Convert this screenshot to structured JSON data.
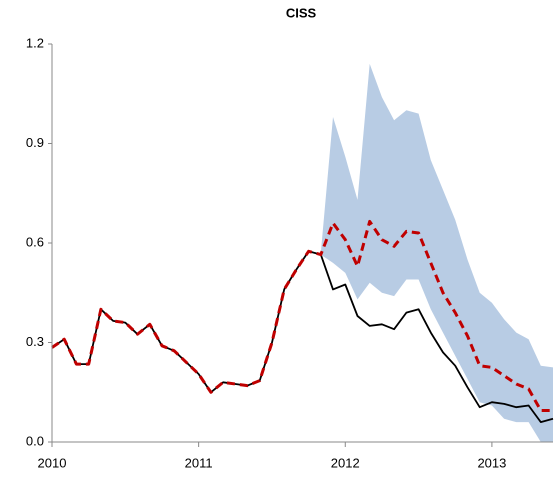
{
  "chart_data": {
    "type": "line",
    "title": "CISS",
    "categories": [
      "2010",
      null,
      null,
      null,
      null,
      null,
      null,
      null,
      null,
      null,
      null,
      null,
      "2011",
      null,
      null,
      null,
      null,
      null,
      null,
      null,
      null,
      null,
      null,
      null,
      "2012",
      null,
      null,
      null,
      null,
      null,
      null,
      null,
      null,
      null,
      null,
      null,
      "2013",
      null,
      null,
      null,
      null,
      null
    ],
    "band": {
      "color": "#b8cce4",
      "upper": [
        null,
        null,
        null,
        null,
        null,
        null,
        null,
        null,
        null,
        null,
        null,
        null,
        null,
        null,
        null,
        null,
        null,
        null,
        null,
        null,
        null,
        null,
        0.57,
        0.98,
        0.86,
        0.73,
        1.14,
        1.04,
        0.97,
        1.0,
        0.99,
        0.85,
        0.76,
        0.67,
        0.55,
        0.45,
        0.42,
        0.37,
        0.33,
        0.31,
        0.23,
        0.225
      ],
      "lower": [
        null,
        null,
        null,
        null,
        null,
        null,
        null,
        null,
        null,
        null,
        null,
        null,
        null,
        null,
        null,
        null,
        null,
        null,
        null,
        null,
        null,
        null,
        0.565,
        0.54,
        0.51,
        0.43,
        0.48,
        0.45,
        0.44,
        0.49,
        0.49,
        0.4,
        0.33,
        0.26,
        0.19,
        0.12,
        0.11,
        0.07,
        0.06,
        0.06,
        0.0,
        0.0
      ]
    },
    "series": [
      {
        "color": "#000000",
        "dashed": false,
        "values": [
          0.285,
          0.31,
          0.235,
          0.235,
          0.4,
          0.365,
          0.36,
          0.325,
          0.355,
          0.29,
          0.275,
          0.24,
          0.205,
          0.15,
          0.18,
          0.175,
          0.17,
          0.185,
          0.3,
          0.46,
          0.52,
          0.575,
          0.565,
          0.46,
          0.475,
          0.38,
          0.35,
          0.355,
          0.34,
          0.39,
          0.4,
          0.33,
          0.27,
          0.23,
          0.165,
          0.105,
          0.12,
          0.115,
          0.105,
          0.11,
          0.06,
          0.07
        ]
      },
      {
        "color": "#c00000",
        "dashed": true,
        "values": [
          0.285,
          0.31,
          0.235,
          0.235,
          0.4,
          0.365,
          0.36,
          0.325,
          0.355,
          0.29,
          0.275,
          0.24,
          0.205,
          0.15,
          0.18,
          0.175,
          0.17,
          0.185,
          0.3,
          0.46,
          0.52,
          0.575,
          0.565,
          0.66,
          0.61,
          0.53,
          0.665,
          0.61,
          0.59,
          0.635,
          0.63,
          0.54,
          0.45,
          0.39,
          0.32,
          0.23,
          0.225,
          0.2,
          0.175,
          0.16,
          0.095,
          0.095
        ]
      }
    ],
    "ylim": [
      0,
      1.2
    ],
    "yticks": [
      {
        "value": 0,
        "label": "0.0"
      },
      0.3,
      0.6,
      0.9,
      1.2
    ],
    "grid": false
  }
}
